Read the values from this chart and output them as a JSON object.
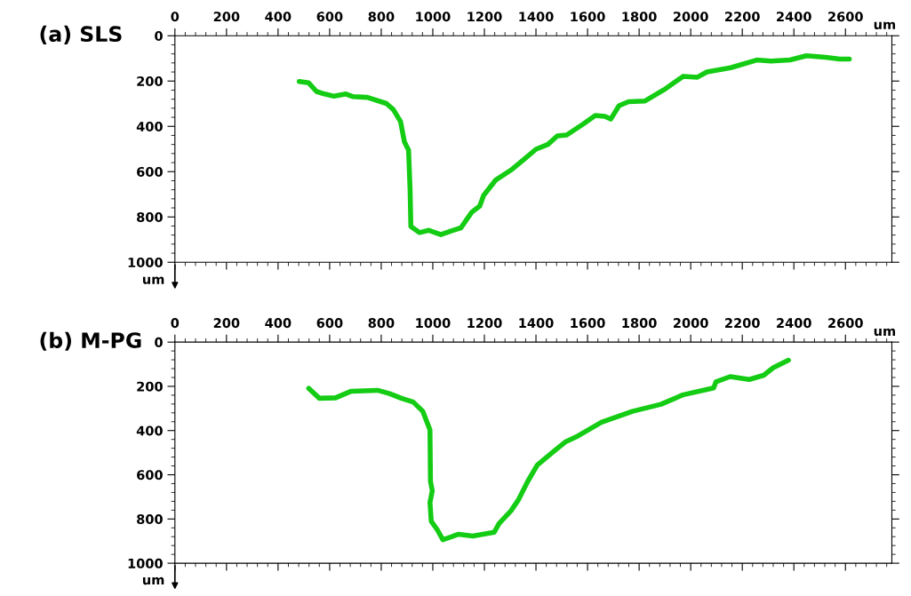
{
  "chart_data": [
    {
      "type": "line",
      "title": "(a) SLS",
      "xlabel": "um",
      "ylabel": "um",
      "xlim": [
        0,
        2780
      ],
      "ylim": [
        1000,
        0
      ],
      "xticks": [
        0,
        200,
        400,
        600,
        800,
        1000,
        1200,
        1400,
        1600,
        1800,
        2000,
        2200,
        2400,
        2600
      ],
      "yticks": [
        0,
        200,
        400,
        600,
        800,
        1000
      ],
      "series": [
        {
          "color": "#14cc14",
          "x": [
            482,
            519,
            549,
            580,
            617,
            663,
            691,
            746,
            820,
            847,
            875,
            890,
            906,
            912,
            915,
            948,
            985,
            1031,
            1068,
            1109,
            1151,
            1182,
            1197,
            1243,
            1308,
            1363,
            1400,
            1446,
            1483,
            1519,
            1584,
            1630,
            1667,
            1690,
            1722,
            1759,
            1823,
            1897,
            1971,
            2026,
            2063,
            2155,
            2256,
            2311,
            2385,
            2449,
            2523,
            2578,
            2615
          ],
          "values": [
            202,
            208,
            246,
            257,
            267,
            257,
            269,
            272,
            299,
            326,
            379,
            469,
            505,
            684,
            842,
            869,
            859,
            878,
            863,
            848,
            779,
            752,
            705,
            638,
            589,
            537,
            501,
            480,
            442,
            438,
            389,
            352,
            356,
            368,
            309,
            291,
            288,
            238,
            179,
            183,
            160,
            141,
            107,
            112,
            107,
            88,
            95,
            103,
            103
          ]
        }
      ]
    },
    {
      "type": "line",
      "title": "(b) M-PG",
      "xlabel": "um",
      "ylabel": "um",
      "xlim": [
        0,
        2780
      ],
      "ylim": [
        1000,
        0
      ],
      "xticks": [
        0,
        200,
        400,
        600,
        800,
        1000,
        1200,
        1400,
        1600,
        1800,
        2000,
        2200,
        2400,
        2600
      ],
      "yticks": [
        0,
        200,
        400,
        600,
        800,
        1000
      ],
      "series": [
        {
          "color": "#14cc14",
          "x": [
            519,
            560,
            623,
            684,
            786,
            832,
            878,
            924,
            961,
            989,
            991,
            998,
            989,
            994,
            1017,
            1039,
            1100,
            1155,
            1238,
            1257,
            1303,
            1331,
            1368,
            1405,
            1470,
            1516,
            1562,
            1654,
            1774,
            1885,
            1969,
            2089,
            2098,
            2153,
            2227,
            2283,
            2320,
            2379
          ],
          "values": [
            209,
            254,
            252,
            222,
            218,
            233,
            254,
            271,
            313,
            397,
            630,
            672,
            725,
            810,
            848,
            894,
            869,
            877,
            860,
            820,
            763,
            715,
            630,
            556,
            493,
            450,
            425,
            362,
            313,
            281,
            239,
            207,
            180,
            156,
            169,
            150,
            116,
            82
          ]
        }
      ]
    }
  ]
}
